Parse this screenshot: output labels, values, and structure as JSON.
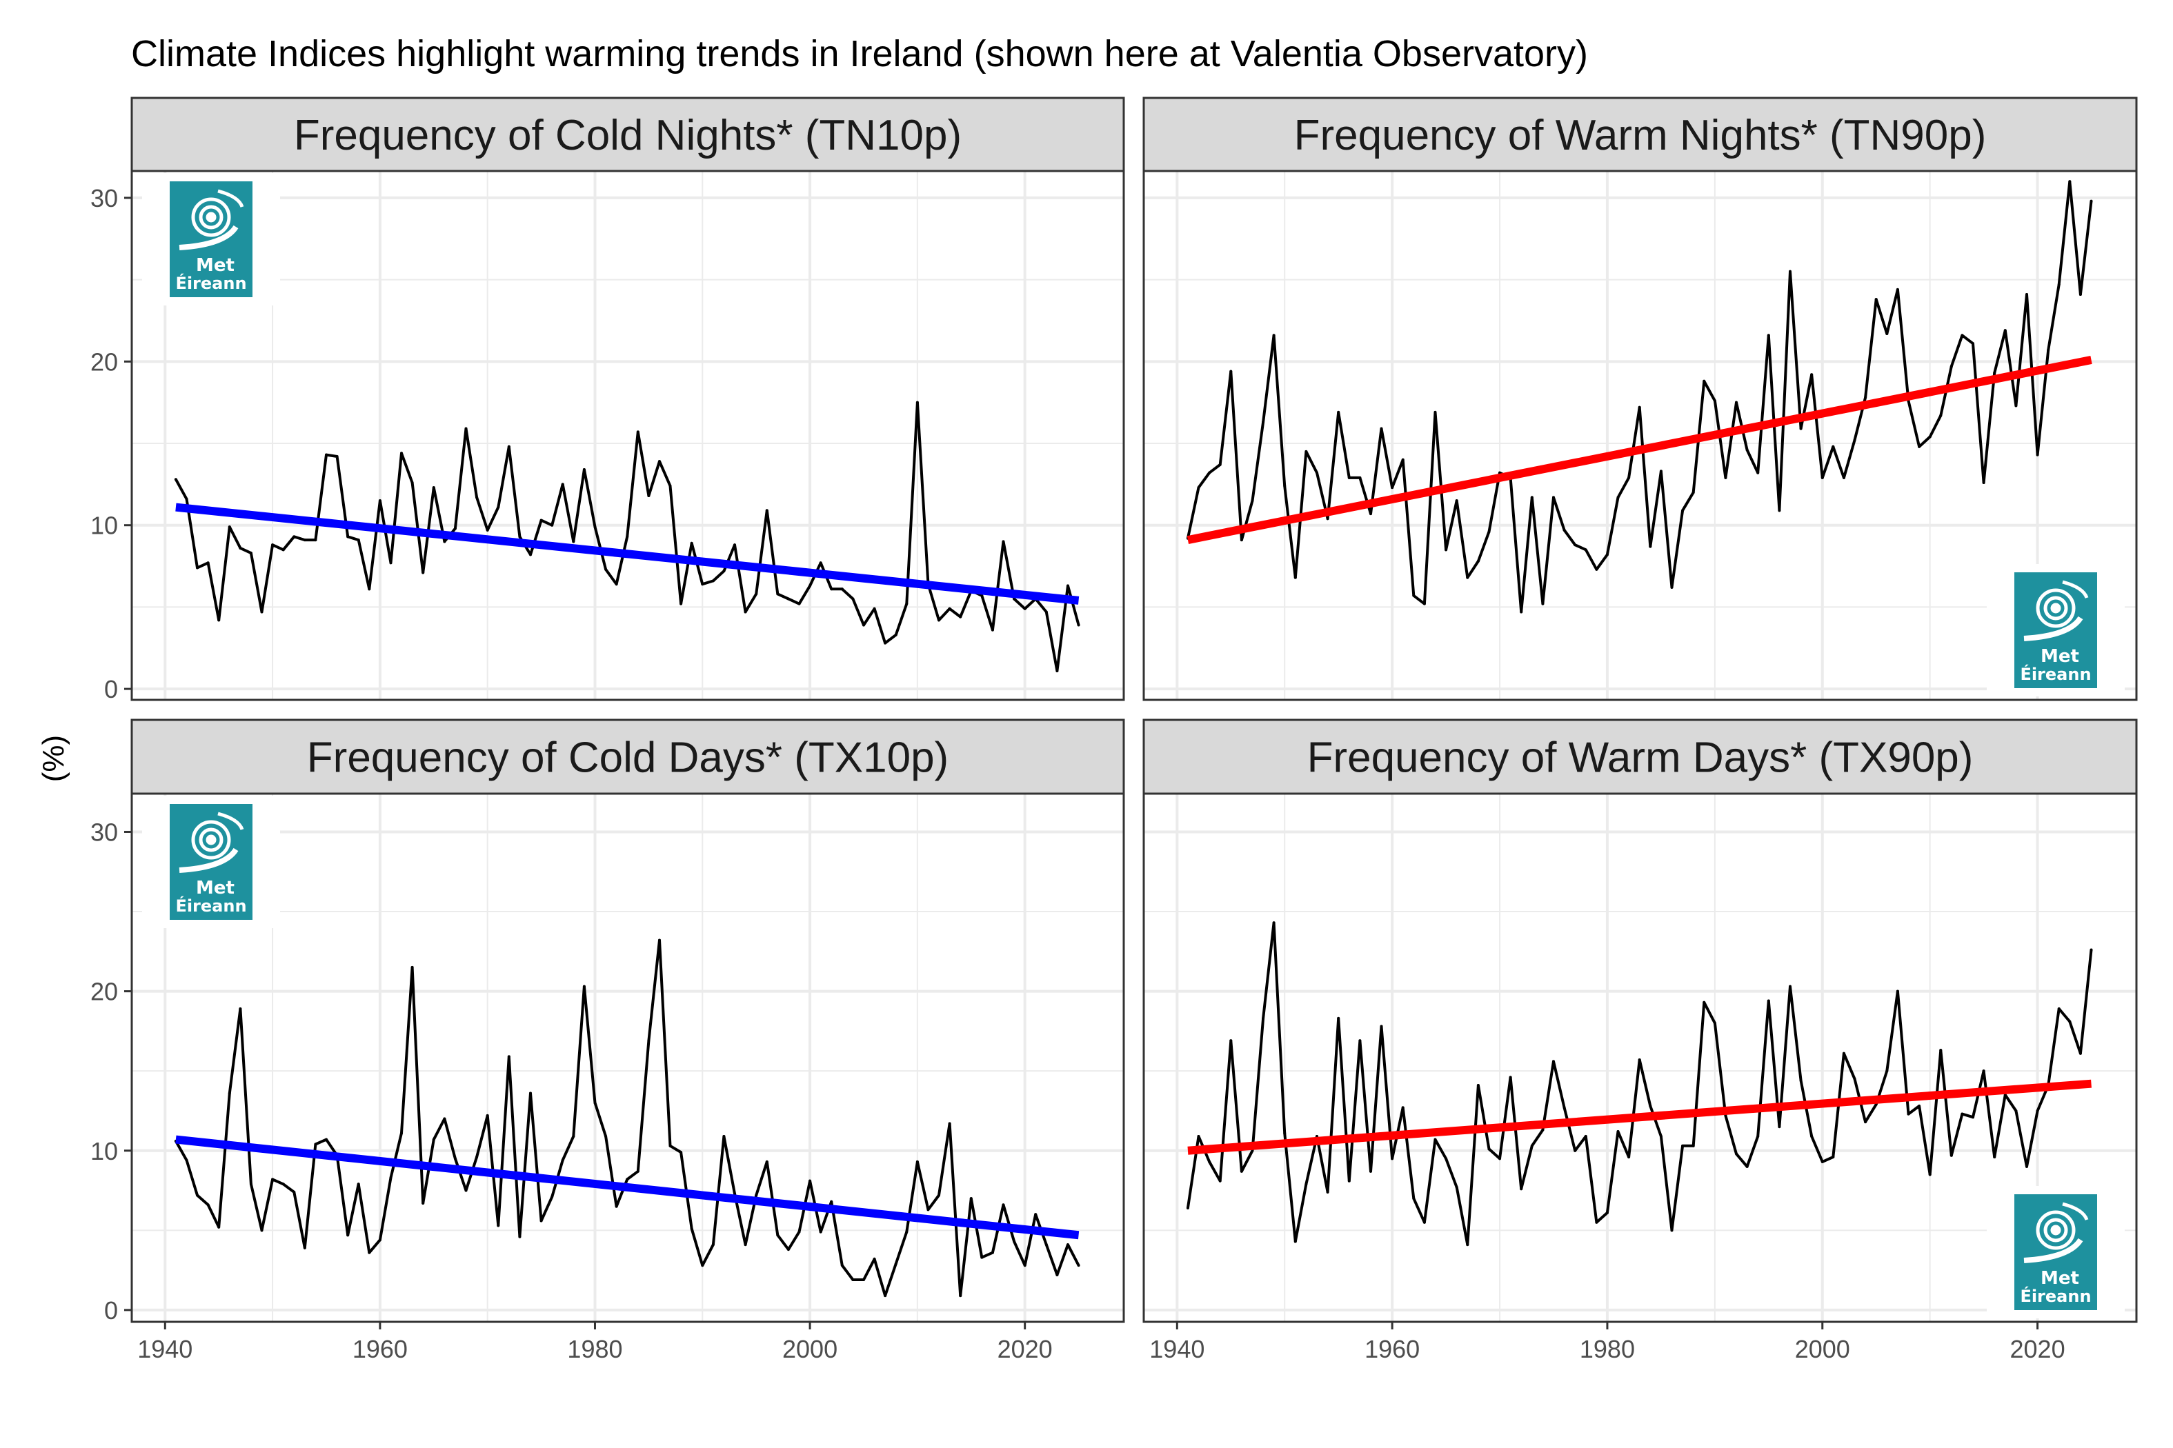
{
  "chart_data": {
    "type": "line",
    "title": "Climate Indices highlight warming trends in Ireland (shown here at Valentia Observatory)",
    "ylabel": "(%)",
    "xlabel": "",
    "grid": true,
    "legend": "none",
    "x_ticks": [
      1940,
      1960,
      1980,
      2000,
      2020
    ],
    "y_ticks": [
      0,
      10,
      20,
      30
    ],
    "xlim": [
      1936.9,
      2029.2
    ],
    "logo_text": [
      "Met",
      "Éireann"
    ],
    "colors": {
      "series_line": "#000000",
      "trend_cold": "#0000FF",
      "trend_warm": "#FF0000",
      "strip_fill": "#D9D9D9",
      "panel_border": "#333333",
      "grid": "#EBEBEB",
      "logo_bg": "#1E919E"
    },
    "panels": [
      {
        "id": "tn10p",
        "title": "Frequency of Cold Nights* (TN10p)",
        "trend_color": "#0000FF",
        "logo_position": "top-left",
        "ylim": [
          -0.67,
          31.64
        ],
        "start_year": 1941,
        "values": [
          12.8,
          11.6,
          7.4,
          7.7,
          4.2,
          9.9,
          8.6,
          8.3,
          4.7,
          8.8,
          8.5,
          9.3,
          9.1,
          9.1,
          14.3,
          14.2,
          9.3,
          9.1,
          6.1,
          11.5,
          7.7,
          14.4,
          12.6,
          7.1,
          12.3,
          9.0,
          9.8,
          15.9,
          11.7,
          9.7,
          11.1,
          14.8,
          9.3,
          8.2,
          10.3,
          10.0,
          12.5,
          9.0,
          13.4,
          9.9,
          7.3,
          6.4,
          9.3,
          15.7,
          11.8,
          13.9,
          12.4,
          5.2,
          8.9,
          6.4,
          6.6,
          7.2,
          8.8,
          4.7,
          5.8,
          10.9,
          5.8,
          5.5,
          5.2,
          6.3,
          7.7,
          6.1,
          6.1,
          5.5,
          3.9,
          4.9,
          2.8,
          3.3,
          5.2,
          17.5,
          6.4,
          4.2,
          4.9,
          4.4,
          6.0,
          5.7,
          3.6,
          9.0,
          5.5,
          4.9,
          5.5,
          4.7,
          1.1,
          6.3,
          3.9
        ],
        "trend": {
          "start": [
            1941,
            11.1
          ],
          "end": [
            2025,
            5.4
          ]
        }
      },
      {
        "id": "tn90p",
        "title": "Frequency of Warm Nights* (TN90p)",
        "trend_color": "#FF0000",
        "logo_position": "bottom-right",
        "ylim": [
          -0.67,
          31.64
        ],
        "start_year": 1941,
        "values": [
          9.2,
          12.3,
          13.2,
          13.7,
          19.4,
          9.1,
          11.5,
          16.3,
          21.6,
          12.4,
          6.8,
          14.5,
          13.2,
          10.4,
          16.9,
          12.9,
          12.9,
          10.7,
          15.9,
          12.3,
          14.0,
          5.7,
          5.2,
          16.9,
          8.5,
          11.5,
          6.8,
          7.8,
          9.6,
          13.2,
          12.9,
          4.7,
          11.7,
          5.2,
          11.7,
          9.7,
          8.8,
          8.5,
          7.3,
          8.2,
          11.7,
          12.9,
          17.2,
          8.7,
          13.3,
          6.2,
          10.9,
          12.0,
          18.8,
          17.6,
          12.9,
          17.5,
          14.6,
          13.2,
          21.6,
          10.9,
          25.5,
          15.9,
          19.2,
          12.9,
          14.8,
          12.9,
          15.2,
          17.8,
          23.8,
          21.7,
          24.4,
          17.6,
          14.8,
          15.4,
          16.7,
          19.7,
          21.6,
          21.1,
          12.6,
          19.3,
          21.9,
          17.3,
          24.1,
          14.3,
          20.7,
          24.7,
          31.0,
          24.1,
          29.8
        ],
        "trend": {
          "start": [
            1941,
            9.1
          ],
          "end": [
            2025,
            20.1
          ]
        }
      },
      {
        "id": "tx10p",
        "title": "Frequency of Cold Days* (TX10p)",
        "trend_color": "#0000FF",
        "logo_position": "top-left",
        "ylim": [
          -0.74,
          32.4
        ],
        "start_year": 1941,
        "values": [
          10.6,
          9.4,
          7.2,
          6.6,
          5.2,
          13.6,
          18.9,
          7.9,
          5.0,
          8.2,
          7.9,
          7.4,
          3.9,
          10.4,
          10.7,
          9.7,
          4.7,
          7.9,
          3.6,
          4.4,
          8.3,
          11.1,
          21.5,
          6.7,
          10.7,
          12.0,
          9.5,
          7.5,
          9.6,
          12.2,
          5.3,
          15.9,
          4.6,
          13.6,
          5.6,
          7.1,
          9.4,
          10.9,
          20.3,
          13.0,
          10.9,
          6.5,
          8.2,
          8.7,
          16.9,
          23.2,
          10.3,
          9.9,
          5.1,
          2.8,
          4.1,
          10.9,
          7.3,
          4.1,
          7.2,
          9.3,
          4.7,
          3.8,
          4.9,
          8.1,
          4.9,
          6.8,
          2.8,
          1.9,
          1.9,
          3.2,
          0.9,
          2.9,
          4.9,
          9.3,
          6.3,
          7.2,
          11.7,
          0.9,
          7.0,
          3.3,
          3.6,
          6.6,
          4.3,
          2.8,
          6.0,
          4.1,
          2.2,
          4.1,
          2.8
        ],
        "trend": {
          "start": [
            1941,
            10.7
          ],
          "end": [
            2025,
            4.7
          ]
        }
      },
      {
        "id": "tx90p",
        "title": "Frequency of Warm Days* (TX90p)",
        "trend_color": "#FF0000",
        "logo_position": "bottom-right",
        "ylim": [
          -0.74,
          32.4
        ],
        "start_year": 1941,
        "values": [
          6.4,
          10.9,
          9.3,
          8.1,
          16.9,
          8.7,
          10.0,
          18.3,
          24.3,
          11.1,
          4.3,
          7.9,
          10.9,
          7.4,
          18.3,
          8.1,
          16.9,
          8.7,
          17.8,
          9.5,
          12.7,
          7.0,
          5.5,
          10.7,
          9.5,
          7.7,
          4.1,
          14.1,
          10.1,
          9.5,
          14.6,
          7.6,
          10.3,
          11.3,
          15.6,
          12.7,
          10.0,
          10.9,
          5.5,
          6.1,
          11.2,
          9.6,
          15.7,
          12.8,
          10.9,
          5.0,
          10.3,
          10.3,
          19.3,
          18.0,
          12.2,
          9.8,
          9.0,
          10.9,
          19.4,
          11.5,
          20.3,
          14.4,
          10.9,
          9.3,
          9.6,
          16.1,
          14.5,
          11.8,
          12.9,
          15.0,
          20.0,
          12.3,
          12.8,
          8.5,
          16.3,
          9.7,
          12.3,
          12.1,
          15.0,
          9.6,
          13.5,
          12.5,
          9.0,
          12.5,
          14.1,
          18.9,
          18.1,
          16.1,
          22.6
        ],
        "trend": {
          "start": [
            1941,
            10.0
          ],
          "end": [
            2025,
            14.2
          ]
        }
      }
    ]
  }
}
